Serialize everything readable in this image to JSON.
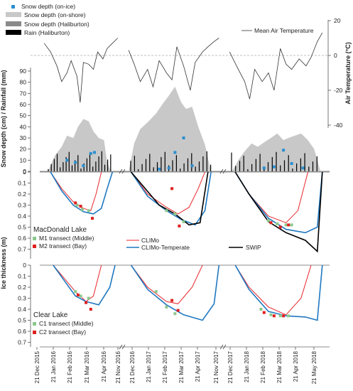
{
  "legend_top": [
    {
      "label": "Snow depth (on-ice)",
      "kind": "square",
      "color": "#2a8fd0"
    },
    {
      "label": "Snow depth (on-shore)",
      "kind": "bar",
      "color": "#c8c8c8"
    },
    {
      "label": "Snow depth (Haliburton)",
      "kind": "bar",
      "color": "#8a8a8a"
    },
    {
      "label": "Rain  (Haliburton)",
      "kind": "bar",
      "color": "#000000"
    }
  ],
  "legend_air": {
    "label": "Mean Air Temperature"
  },
  "legend_mid": [
    {
      "label": "CLIMo",
      "color": "#e8262b"
    },
    {
      "label": "CLIMo-Temperate",
      "color": "#1f78c1"
    },
    {
      "label": "SWIP",
      "color": "#000000"
    }
  ],
  "lake1": {
    "name": "MacDonald Lake",
    "legend": [
      {
        "label": "M1 transect (Middle)",
        "color": "#8cc88c"
      },
      {
        "label": "M2 transect (Bay)",
        "color": "#e02020"
      }
    ]
  },
  "lake2": {
    "name": "Clear Lake",
    "legend": [
      {
        "label": "C1 transect (Middle)",
        "color": "#8cc88c"
      },
      {
        "label": "C2 transect (Bay)",
        "color": "#e02020"
      }
    ]
  },
  "axes": {
    "temp_label": "Air Temperature (°C)",
    "temp_ticks": [
      "20",
      "0",
      "-20",
      "-40"
    ],
    "snow_label": "Snow depth (cm) / Rainfall (mm)",
    "snow_ticks": [
      "90",
      "80",
      "70",
      "60",
      "50",
      "40",
      "30",
      "20",
      "10",
      "0"
    ],
    "ice_label": "Ice thickness (m)",
    "ice_ticks": [
      "0",
      "0.1",
      "0.2",
      "0.3",
      "0.4",
      "0.5",
      "0.6",
      "0.7"
    ]
  },
  "x_ticks": [
    "21 Dec 2015",
    "21 Jan 2016",
    "21 Feb 2016",
    "21 Mar 2016",
    "21 Apr 2016",
    "21 Nov 2016",
    "21 Dec 2016",
    "21 Jan 2017",
    "21 Feb 2017",
    "21 Mar 2017",
    "21 Apr 2017",
    "21 Nov 2017",
    "21 Dec 2017",
    "21 Jan 2018",
    "21 Feb 2018",
    "21 Mar 2018",
    "21 Apr 2018",
    "21 May 2018"
  ],
  "chart_data": {
    "type": "line",
    "winters": [
      "2015-2016",
      "2016-2017",
      "2017-2018"
    ],
    "air_temperature_daily_mean_C": [
      {
        "winter": "2015-2016",
        "x": [
          "2015-12-08",
          "2015-12-20",
          "2016-01-01",
          "2016-01-10",
          "2016-01-20",
          "2016-01-28",
          "2016-02-08",
          "2016-02-14",
          "2016-02-20",
          "2016-03-01",
          "2016-03-10",
          "2016-03-18",
          "2016-03-28",
          "2016-04-05",
          "2016-04-15",
          "2016-04-25"
        ],
        "y": [
          7,
          2,
          -6,
          -15,
          -10,
          -3,
          -12,
          -27,
          -4,
          -5,
          -8,
          2,
          -2,
          4,
          7,
          10
        ]
      },
      {
        "winter": "2016-2017",
        "x": [
          "2016-12-01",
          "2016-12-10",
          "2016-12-20",
          "2017-01-01",
          "2017-01-10",
          "2017-01-20",
          "2017-02-01",
          "2017-02-10",
          "2017-02-18",
          "2017-03-01",
          "2017-03-12",
          "2017-03-20",
          "2017-04-01",
          "2017-04-10",
          "2017-04-20",
          "2017-04-28"
        ],
        "y": [
          3,
          -5,
          -15,
          -8,
          -18,
          -3,
          -10,
          -14,
          5,
          -6,
          -20,
          -4,
          2,
          5,
          8,
          10
        ]
      },
      {
        "winter": "2017-2018",
        "x": [
          "2017-12-01",
          "2017-12-12",
          "2017-12-25",
          "2018-01-02",
          "2018-01-10",
          "2018-01-22",
          "2018-02-01",
          "2018-02-10",
          "2018-02-20",
          "2018-03-01",
          "2018-03-10",
          "2018-03-22",
          "2018-04-02",
          "2018-04-10",
          "2018-04-20",
          "2018-04-28"
        ],
        "y": [
          2,
          -6,
          -15,
          -25,
          -8,
          -15,
          -10,
          -20,
          4,
          -5,
          -8,
          -2,
          -6,
          -1,
          8,
          13
        ]
      }
    ],
    "snow_depth_on_shore_cm": [
      {
        "winter": "2015-2016",
        "x": [
          "2015-12-15",
          "2015-12-28",
          "2016-01-10",
          "2016-01-20",
          "2016-02-01",
          "2016-02-10",
          "2016-02-20",
          "2016-03-01",
          "2016-03-10",
          "2016-03-20",
          "2016-03-30",
          "2016-04-05",
          "2016-04-12"
        ],
        "y": [
          0,
          14,
          22,
          32,
          30,
          40,
          47,
          45,
          36,
          30,
          28,
          8,
          0
        ]
      },
      {
        "winter": "2016-2017",
        "x": [
          "2016-12-01",
          "2016-12-10",
          "2016-12-20",
          "2017-01-01",
          "2017-01-15",
          "2017-01-25",
          "2017-02-05",
          "2017-02-15",
          "2017-02-25",
          "2017-03-05",
          "2017-03-15",
          "2017-03-25",
          "2017-04-05",
          "2017-04-15"
        ],
        "y": [
          0,
          25,
          38,
          44,
          52,
          60,
          68,
          76,
          62,
          56,
          58,
          40,
          24,
          0
        ]
      },
      {
        "winter": "2017-2018",
        "x": [
          "2017-12-05",
          "2017-12-15",
          "2017-12-25",
          "2018-01-05",
          "2018-01-15",
          "2018-01-25",
          "2018-02-05",
          "2018-02-15",
          "2018-02-25",
          "2018-03-05",
          "2018-03-15",
          "2018-03-25",
          "2018-04-05",
          "2018-04-15",
          "2018-04-25"
        ],
        "y": [
          0,
          10,
          18,
          25,
          22,
          26,
          30,
          34,
          28,
          30,
          32,
          34,
          28,
          20,
          0
        ]
      }
    ],
    "snow_depth_on_ice_cm": [
      {
        "winter": "2015-2016",
        "x": [
          "2016-01-20",
          "2016-02-05",
          "2016-02-20",
          "2016-03-05",
          "2016-03-12"
        ],
        "y": [
          10,
          8,
          5,
          16,
          17
        ]
      },
      {
        "winter": "2016-2017",
        "x": [
          "2017-01-20",
          "2017-02-05",
          "2017-02-15",
          "2017-03-01",
          "2017-03-15"
        ],
        "y": [
          2,
          3,
          17,
          30,
          5
        ]
      },
      {
        "winter": "2017-2018",
        "x": [
          "2018-01-25",
          "2018-02-10",
          "2018-02-25",
          "2018-03-10",
          "2018-03-28"
        ],
        "y": [
          3,
          4,
          19,
          7,
          3
        ]
      }
    ],
    "ice_thickness_m": [
      {
        "lake": "MacDonald Lake",
        "winter": "2015-2016",
        "series": [
          {
            "name": "CLIMo",
            "x": [
              "2015-12-20",
              "2016-01-10",
              "2016-02-01",
              "2016-02-20",
              "2016-03-05",
              "2016-03-15",
              "2016-03-25"
            ],
            "y": [
              0,
              0.15,
              0.27,
              0.33,
              0.35,
              0.2,
              0
            ]
          },
          {
            "name": "CLIMo-Temperate",
            "x": [
              "2015-12-20",
              "2016-01-10",
              "2016-02-01",
              "2016-02-20",
              "2016-03-10",
              "2016-03-25",
              "2016-04-05",
              "2016-04-15"
            ],
            "y": [
              0,
              0.17,
              0.3,
              0.36,
              0.38,
              0.33,
              0.15,
              0
            ]
          }
        ]
      },
      {
        "lake": "MacDonald Lake",
        "winter": "2016-2017",
        "series": [
          {
            "name": "CLIMo",
            "x": [
              "2016-12-05",
              "2017-01-01",
              "2017-02-01",
              "2017-02-20",
              "2017-03-10",
              "2017-03-25",
              "2017-04-05"
            ],
            "y": [
              0,
              0.2,
              0.32,
              0.38,
              0.32,
              0.15,
              0
            ]
          },
          {
            "name": "CLIMo-Temperate",
            "x": [
              "2016-12-05",
              "2017-01-01",
              "2017-02-01",
              "2017-02-25",
              "2017-03-20",
              "2017-04-05",
              "2017-04-15"
            ],
            "y": [
              0,
              0.22,
              0.35,
              0.43,
              0.48,
              0.35,
              0
            ]
          },
          {
            "name": "SWIP",
            "x": [
              "2016-12-05",
              "2016-12-25",
              "2017-01-20",
              "2017-02-15",
              "2017-03-10",
              "2017-03-28",
              "2017-04-10"
            ],
            "y": [
              0,
              0.13,
              0.3,
              0.38,
              0.48,
              0.46,
              0
            ]
          }
        ]
      },
      {
        "lake": "MacDonald Lake",
        "winter": "2017-2018",
        "series": [
          {
            "name": "CLIMo",
            "x": [
              "2017-12-10",
              "2018-01-01",
              "2018-02-01",
              "2018-03-01",
              "2018-03-20",
              "2018-04-05"
            ],
            "y": [
              0,
              0.2,
              0.4,
              0.46,
              0.35,
              0
            ]
          },
          {
            "name": "CLIMo-Temperate",
            "x": [
              "2017-12-10",
              "2018-01-01",
              "2018-02-01",
              "2018-03-01",
              "2018-04-01",
              "2018-04-20",
              "2018-04-28"
            ],
            "y": [
              0,
              0.2,
              0.42,
              0.52,
              0.55,
              0.5,
              0
            ]
          },
          {
            "name": "SWIP",
            "x": [
              "2017-12-10",
              "2018-01-01",
              "2018-02-01",
              "2018-03-01",
              "2018-04-01",
              "2018-04-20",
              "2018-04-28"
            ],
            "y": [
              0,
              0.2,
              0.45,
              0.55,
              0.62,
              0.72,
              0
            ]
          }
        ]
      },
      {
        "lake": "Clear Lake",
        "winter": "2015-2016",
        "series": [
          {
            "name": "CLIMo",
            "x": [
              "2015-12-25",
              "2016-01-15",
              "2016-02-05",
              "2016-02-25",
              "2016-03-10",
              "2016-03-25"
            ],
            "y": [
              0,
              0.12,
              0.24,
              0.33,
              0.28,
              0
            ]
          },
          {
            "name": "CLIMo-Temperate",
            "x": [
              "2015-12-25",
              "2016-01-15",
              "2016-02-05",
              "2016-02-25",
              "2016-03-20",
              "2016-04-10",
              "2016-04-20"
            ],
            "y": [
              0,
              0.14,
              0.28,
              0.33,
              0.36,
              0.2,
              0
            ]
          }
        ]
      },
      {
        "lake": "Clear Lake",
        "winter": "2016-2017",
        "series": [
          {
            "name": "CLIMo",
            "x": [
              "2016-12-05",
              "2017-01-01",
              "2017-02-01",
              "2017-02-20",
              "2017-03-15",
              "2017-04-01"
            ],
            "y": [
              0,
              0.2,
              0.33,
              0.35,
              0.2,
              0
            ]
          },
          {
            "name": "CLIMo-Temperate",
            "x": [
              "2016-12-05",
              "2017-01-01",
              "2017-02-01",
              "2017-03-01",
              "2017-04-01",
              "2017-04-20",
              "2017-04-28"
            ],
            "y": [
              0,
              0.22,
              0.36,
              0.45,
              0.5,
              0.35,
              0
            ]
          }
        ]
      },
      {
        "lake": "Clear Lake",
        "winter": "2017-2018",
        "series": [
          {
            "name": "CLIMo",
            "x": [
              "2017-12-10",
              "2018-01-01",
              "2018-02-01",
              "2018-03-01",
              "2018-03-25",
              "2018-04-10"
            ],
            "y": [
              0,
              0.2,
              0.38,
              0.45,
              0.3,
              0
            ]
          },
          {
            "name": "CLIMo-Temperate",
            "x": [
              "2017-12-10",
              "2018-01-01",
              "2018-02-01",
              "2018-03-01",
              "2018-04-01",
              "2018-04-20",
              "2018-04-28"
            ],
            "y": [
              0,
              0.22,
              0.42,
              0.46,
              0.47,
              0.5,
              0
            ]
          }
        ]
      }
    ],
    "transect_measurements_m": [
      {
        "lake": "MacDonald Lake",
        "winter": "2015-2016",
        "series": [
          {
            "name": "M1 transect (Middle)",
            "x": [
              "2016-02-08",
              "2016-02-18",
              "2016-03-01"
            ],
            "y": [
              0.3,
              0.34,
              0.35
            ]
          },
          {
            "name": "M2 transect (Bay)",
            "x": [
              "2016-02-05",
              "2016-02-15",
              "2016-03-08"
            ],
            "y": [
              0.28,
              0.31,
              0.42
            ]
          }
        ]
      },
      {
        "lake": "MacDonald Lake",
        "winter": "2016-2017",
        "series": [
          {
            "name": "M1 transect (Middle)",
            "x": [
              "2017-02-01",
              "2017-02-15",
              "2017-03-01"
            ],
            "y": [
              0.35,
              0.38,
              0.45
            ]
          },
          {
            "name": "M2 transect (Bay)",
            "x": [
              "2017-02-10",
              "2017-02-22"
            ],
            "y": [
              0.15,
              0.49
            ]
          }
        ]
      },
      {
        "lake": "MacDonald Lake",
        "winter": "2017-2018",
        "series": [
          {
            "name": "M1 transect (Middle)",
            "x": [
              "2018-02-01",
              "2018-02-15",
              "2018-03-01",
              "2018-03-10"
            ],
            "y": [
              0.44,
              0.47,
              0.48,
              0.48
            ]
          },
          {
            "name": "M2 transect (Bay)",
            "x": [
              "2018-02-05",
              "2018-02-20",
              "2018-03-05"
            ],
            "y": [
              0.46,
              0.5,
              0.48
            ]
          }
        ]
      },
      {
        "lake": "Clear Lake",
        "winter": "2015-2016",
        "series": [
          {
            "name": "C1 transect (Middle)",
            "x": [
              "2016-02-05",
              "2016-02-15",
              "2016-03-01"
            ],
            "y": [
              0.24,
              0.28,
              0.3
            ]
          },
          {
            "name": "C2 transect (Bay)",
            "x": [
              "2016-02-10",
              "2016-02-25",
              "2016-03-05"
            ],
            "y": [
              0.27,
              0.34,
              0.4
            ]
          }
        ]
      },
      {
        "lake": "Clear Lake",
        "winter": "2016-2017",
        "series": [
          {
            "name": "C1 transect (Middle)",
            "x": [
              "2017-01-15",
              "2017-02-01",
              "2017-02-15"
            ],
            "y": [
              0.24,
              0.38,
              0.44
            ]
          },
          {
            "name": "C2 transect (Bay)",
            "x": [
              "2017-02-10",
              "2017-02-20"
            ],
            "y": [
              0.32,
              0.41
            ]
          }
        ]
      },
      {
        "lake": "Clear Lake",
        "winter": "2017-2018",
        "series": [
          {
            "name": "C1 transect (Middle)",
            "x": [
              "2018-01-20",
              "2018-02-05",
              "2018-02-20",
              "2018-03-05"
            ],
            "y": [
              0.4,
              0.45,
              0.46,
              0.46
            ]
          },
          {
            "name": "C2 transect (Bay)",
            "x": [
              "2018-01-25",
              "2018-02-10",
              "2018-02-25"
            ],
            "y": [
              0.43,
              0.46,
              0.46
            ]
          }
        ]
      }
    ]
  }
}
